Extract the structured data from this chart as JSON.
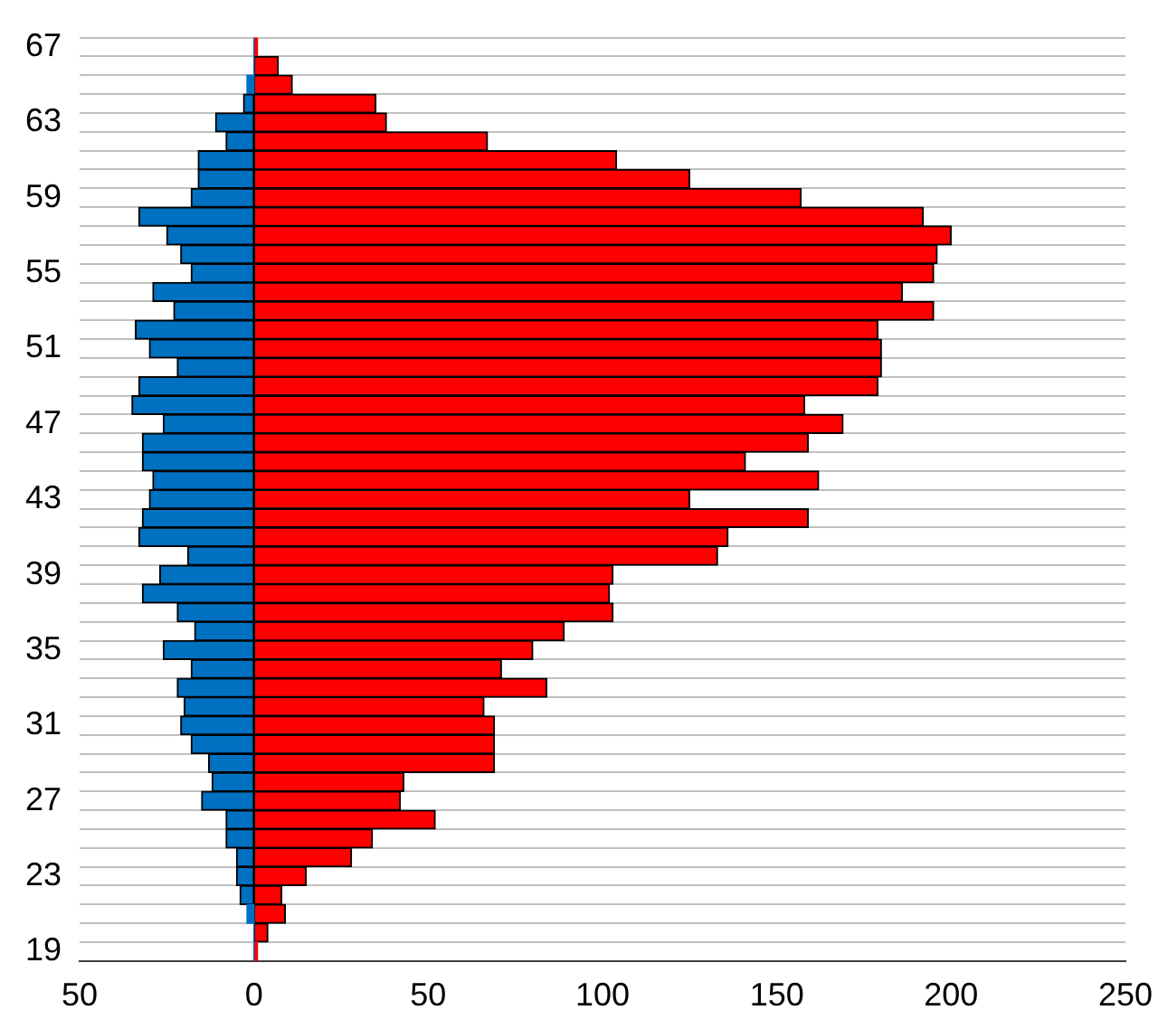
{
  "chart_data": {
    "type": "bar",
    "orientation": "horizontal",
    "stacked": true,
    "categories": [
      "67",
      null,
      null,
      null,
      "63",
      null,
      null,
      null,
      "59",
      null,
      null,
      null,
      "55",
      null,
      null,
      null,
      "51",
      null,
      null,
      null,
      "47",
      null,
      null,
      null,
      "43",
      null,
      null,
      null,
      "39",
      null,
      null,
      null,
      "35",
      null,
      null,
      null,
      "31",
      null,
      null,
      null,
      "27",
      null,
      null,
      null,
      "23",
      null,
      null,
      null,
      "19"
    ],
    "series": [
      {
        "color": "#0070c0",
        "values": [
          0,
          0,
          -2,
          -3,
          -11,
          -8,
          -16,
          -16,
          -18,
          -33,
          -25,
          -21,
          -18,
          -29,
          -23,
          -34,
          -30,
          -22,
          -33,
          -35,
          -26,
          -32,
          -32,
          -29,
          -30,
          -32,
          -33,
          -19,
          -27,
          -32,
          -22,
          -17,
          -26,
          -18,
          -22,
          -20,
          -21,
          -18,
          -13,
          -12,
          -15,
          -8,
          -8,
          -5,
          -5,
          -4,
          -2,
          0,
          0
        ]
      },
      {
        "color": "#ff0000",
        "values": [
          1,
          7,
          11,
          35,
          38,
          67,
          104,
          125,
          157,
          192,
          200,
          196,
          195,
          186,
          195,
          179,
          180,
          180,
          179,
          158,
          169,
          159,
          141,
          162,
          125,
          159,
          136,
          133,
          103,
          102,
          103,
          89,
          80,
          71,
          84,
          66,
          69,
          69,
          69,
          43,
          42,
          52,
          34,
          28,
          15,
          8,
          9,
          4,
          1
        ]
      }
    ],
    "xlim": [
      -50,
      250
    ],
    "xticks": [
      {
        "value": -50,
        "label": "50"
      },
      0,
      50,
      100,
      150,
      200,
      250
    ],
    "grid": "y",
    "legend": false
  }
}
